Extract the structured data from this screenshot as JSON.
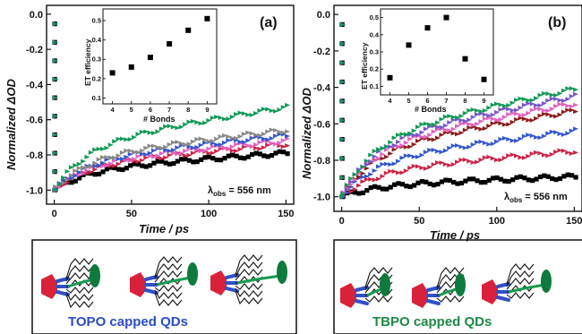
{
  "chart_data": [
    {
      "panel": "(a)",
      "type": "scatter",
      "xlabel": "Time / ps",
      "ylabel": "Normalized ΔOD",
      "xlim": [
        -5,
        155
      ],
      "ylim": [
        -1.08,
        0.05
      ],
      "xticks": [
        0,
        50,
        100,
        150
      ],
      "yticks": [
        "0.0",
        "-0.2",
        "-0.4",
        "-0.6",
        "-0.8",
        "-1.0"
      ],
      "annotation_main": "λ",
      "annotation_sub": "obs",
      "annotation_tail": " = 556 nm",
      "series": [
        {
          "color": "#000000",
          "marker": "square",
          "end": -0.79
        },
        {
          "color": "#cc2244",
          "marker": "triangle",
          "end": -0.74
        },
        {
          "color": "#e060c0",
          "marker": "triangle",
          "end": -0.72
        },
        {
          "color": "#3355cc",
          "marker": "triangle",
          "end": -0.69
        },
        {
          "color": "#888888",
          "marker": "triangle",
          "end": -0.66
        },
        {
          "color": "#119955",
          "marker": "triangle",
          "end": -0.53
        }
      ],
      "inset": {
        "xlabel": "# Bonds",
        "ylabel": "ET efficiency",
        "x": [
          4,
          5,
          6,
          7,
          8,
          9
        ],
        "y": [
          0.23,
          0.26,
          0.31,
          0.38,
          0.45,
          0.51
        ],
        "xlim": [
          3.5,
          9.5
        ],
        "ylim": [
          0.07,
          0.56
        ],
        "yticks": [
          "0.1",
          "0.2",
          "0.3",
          "0.4",
          "0.5"
        ]
      }
    },
    {
      "panel": "(b)",
      "type": "scatter",
      "xlabel": "Time / ps",
      "ylabel": "Normalized ΔOD",
      "xlim": [
        -5,
        155
      ],
      "ylim": [
        -1.08,
        0.05
      ],
      "xticks": [
        0,
        50,
        100,
        "150"
      ],
      "yticks": [
        "0.0",
        "-0.2",
        "-0.4",
        "-0.6",
        "-0.8",
        "-1.0"
      ],
      "annotation_main": "λ",
      "annotation_sub": "obs",
      "annotation_tail": " = 556 nm",
      "series": [
        {
          "color": "#000000",
          "marker": "square",
          "end": -0.89
        },
        {
          "color": "#cc2244",
          "marker": "triangle",
          "end": -0.75
        },
        {
          "color": "#3355cc",
          "marker": "triangle",
          "end": -0.64
        },
        {
          "color": "#8b1a1a",
          "marker": "triangle",
          "end": -0.53
        },
        {
          "color": "#e060c0",
          "marker": "triangle",
          "end": -0.49
        },
        {
          "color": "#7755cc",
          "marker": "triangle",
          "end": -0.45
        },
        {
          "color": "#119955",
          "marker": "triangle",
          "end": -0.41
        }
      ],
      "inset": {
        "xlabel": "# Bonds",
        "ylabel": "ET efficiency",
        "x": [
          4,
          5,
          6,
          7,
          8,
          9
        ],
        "y": [
          0.15,
          0.34,
          0.44,
          0.5,
          0.26,
          0.14
        ],
        "xlim": [
          3.5,
          9.5
        ],
        "ylim": [
          0.05,
          0.55
        ],
        "yticks": [
          "0.1",
          "0.2",
          "0.3",
          "0.4",
          "0.5"
        ]
      }
    }
  ],
  "captions": {
    "left": "TOPO capped QDs",
    "right": "TBPO capped QDs"
  },
  "colors": {
    "topo_caption": "#2b4cc4",
    "tbpo_caption": "#1d8a45",
    "qd_core": "#d9223a",
    "ligand_blue": "#3150c8",
    "ligand_green": "#1a9a52",
    "acceptor": "#0e7a3e"
  }
}
